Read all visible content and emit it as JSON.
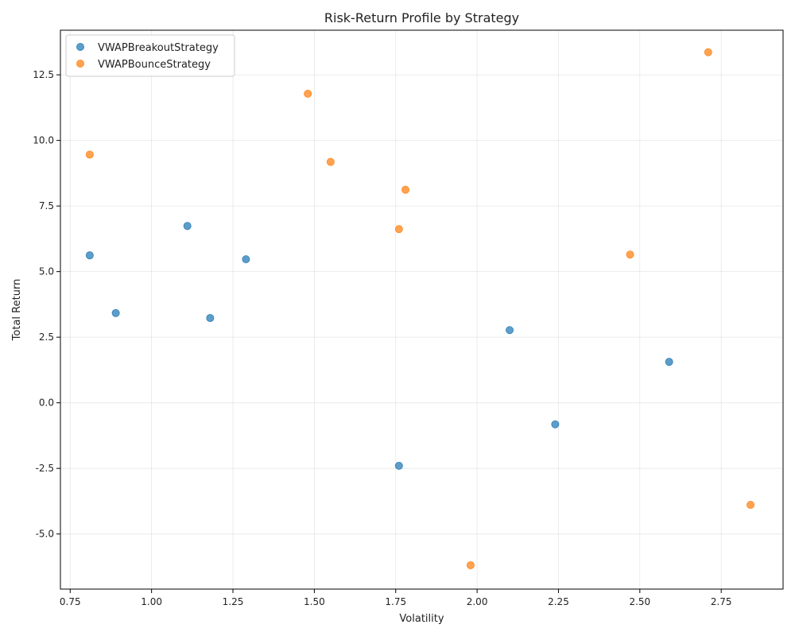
{
  "chart_data": {
    "type": "scatter",
    "title": "Risk-Return Profile by Strategy",
    "xlabel": "Volatility",
    "ylabel": "Total Return",
    "xlim": [
      0.72,
      2.94
    ],
    "ylim": [
      -7.1,
      14.2
    ],
    "xticks": [
      0.75,
      1.0,
      1.25,
      1.5,
      1.75,
      2.0,
      2.25,
      2.5,
      2.75
    ],
    "xtick_labels": [
      "0.75",
      "1.00",
      "1.25",
      "1.50",
      "1.75",
      "2.00",
      "2.25",
      "2.50",
      "2.75"
    ],
    "yticks": [
      -5.0,
      -2.5,
      0.0,
      2.5,
      5.0,
      7.5,
      10.0,
      12.5
    ],
    "ytick_labels": [
      "-5.0",
      "-2.5",
      "0.0",
      "2.5",
      "5.0",
      "7.5",
      "10.0",
      "12.5"
    ],
    "grid": true,
    "legend_position": "upper-left",
    "series": [
      {
        "name": "VWAPBreakoutStrategy",
        "color": "#1f77b4",
        "points": [
          {
            "x": 0.81,
            "y": 5.62
          },
          {
            "x": 0.89,
            "y": 3.42
          },
          {
            "x": 1.11,
            "y": 6.74
          },
          {
            "x": 1.18,
            "y": 3.23
          },
          {
            "x": 1.29,
            "y": 5.47
          },
          {
            "x": 1.76,
            "y": -2.4
          },
          {
            "x": 2.1,
            "y": 2.77
          },
          {
            "x": 2.24,
            "y": -0.82
          },
          {
            "x": 2.59,
            "y": 1.56
          }
        ]
      },
      {
        "name": "VWAPBounceStrategy",
        "color": "#ff7f0e",
        "points": [
          {
            "x": 0.81,
            "y": 9.46
          },
          {
            "x": 1.48,
            "y": 11.78
          },
          {
            "x": 1.55,
            "y": 9.18
          },
          {
            "x": 1.76,
            "y": 6.62
          },
          {
            "x": 1.78,
            "y": 8.12
          },
          {
            "x": 1.98,
            "y": -6.19
          },
          {
            "x": 2.47,
            "y": 5.65
          },
          {
            "x": 2.71,
            "y": 13.36
          },
          {
            "x": 2.84,
            "y": -3.89
          }
        ]
      }
    ]
  }
}
